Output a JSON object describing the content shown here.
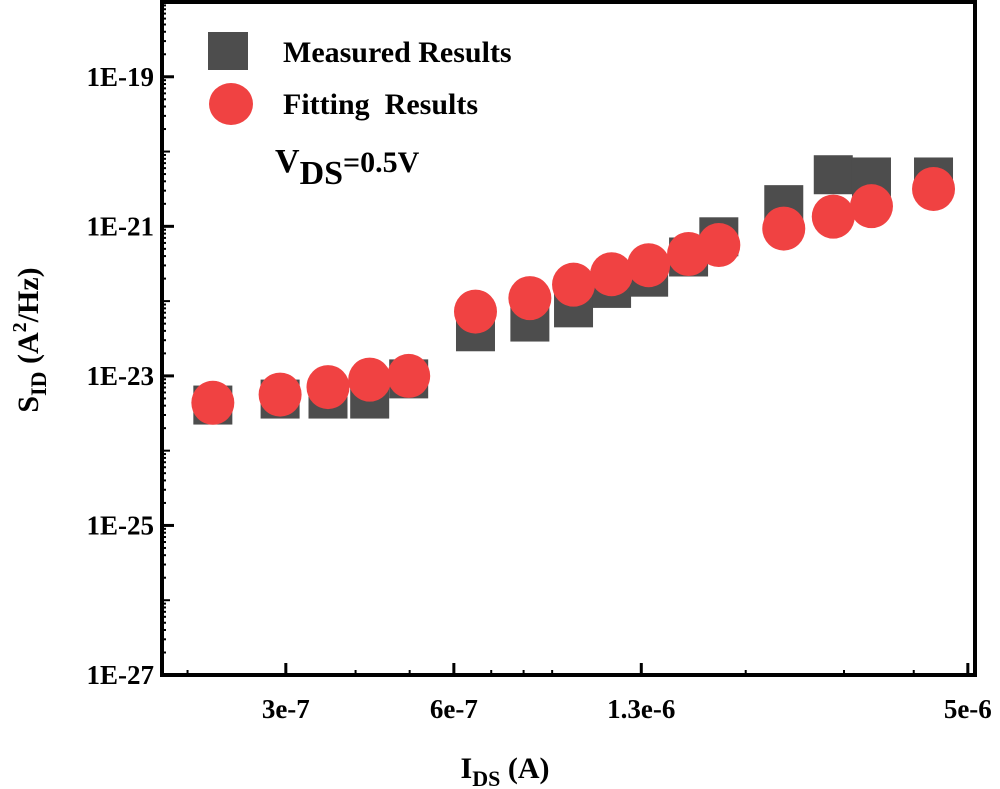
{
  "chart_data": {
    "type": "scatter",
    "xscale": "log",
    "yscale": "log",
    "xlabel": {
      "main": "I",
      "sub": "DS",
      "rest": " (A)"
    },
    "ylabel": {
      "main": "S",
      "sub": "ID",
      "rest1": " (A",
      "sup": "2",
      "rest2": "/Hz)"
    },
    "xlim": [
      1.8e-07,
      5.15e-06
    ],
    "ylim": [
      1e-27,
      1e-18
    ],
    "xticks": [
      {
        "value": 3e-07,
        "label": "3e-7"
      },
      {
        "value": 6e-07,
        "label": "6e-7"
      },
      {
        "value": 1.3e-06,
        "label": "1.3e-6"
      },
      {
        "value": 5e-06,
        "label": "5e-6"
      }
    ],
    "yticks": [
      {
        "value": 1e-19,
        "label": "1E-19"
      },
      {
        "value": 1e-21,
        "label": "1E-21"
      },
      {
        "value": 1e-23,
        "label": "1E-23"
      },
      {
        "value": 1e-25,
        "label": "1E-25"
      },
      {
        "value": 1e-27,
        "label": "1E-27"
      }
    ],
    "annotation": {
      "main": "V",
      "sub": "DS",
      "rest": "=0.5V"
    },
    "legend_position": "top-left",
    "x": [
      2.22e-07,
      2.93e-07,
      3.57e-07,
      4.24e-07,
      4.98e-07,
      6.56e-07,
      8.21e-07,
      9.83e-07,
      1.15e-06,
      1.34e-06,
      1.58e-06,
      1.79e-06,
      2.34e-06,
      2.87e-06,
      3.36e-06,
      4.34e-06
    ],
    "series": [
      {
        "name": "Measured Results",
        "marker": "square",
        "color": "#4d4d4d",
        "log10_values": [
          -23.39,
          -23.31,
          -23.31,
          -23.31,
          -23.04,
          -22.41,
          -22.28,
          -22.09,
          -21.83,
          -21.68,
          -21.41,
          -21.14,
          -20.71,
          -20.31,
          -20.34,
          -20.34
        ]
      },
      {
        "name": "Fitting  Results",
        "marker": "circle",
        "color": "#f04242",
        "log10_values": [
          -23.36,
          -23.25,
          -23.15,
          -23.05,
          -23.0,
          -22.14,
          -21.96,
          -21.78,
          -21.64,
          -21.52,
          -21.37,
          -21.25,
          -21.03,
          -20.87,
          -20.73,
          -20.5
        ]
      }
    ]
  }
}
